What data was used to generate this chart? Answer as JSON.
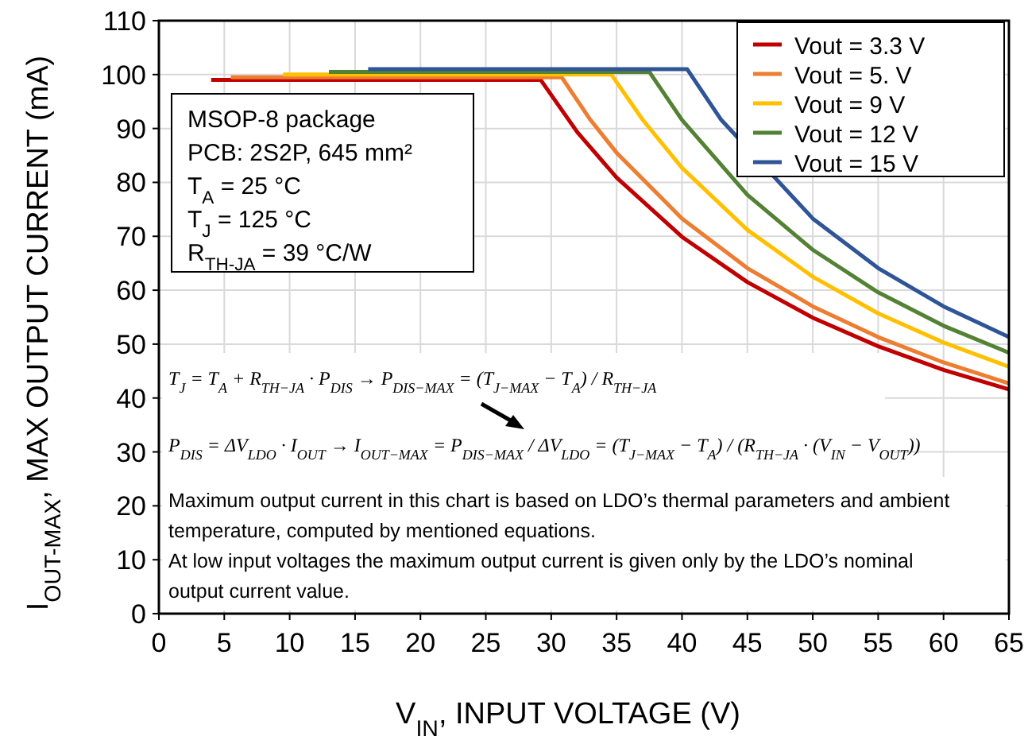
{
  "chart_data": {
    "type": "line",
    "xlabel": "V$_{IN}$, INPUT VOLTAGE (V)",
    "ylabel": "I$_{OUT-MAX}$, MAX OUTPUT CURRENT (mA)",
    "xlim": [
      0,
      65
    ],
    "xticks": [
      0,
      5,
      10,
      15,
      20,
      25,
      30,
      35,
      40,
      45,
      50,
      55,
      60,
      65
    ],
    "ylim": [
      0,
      110
    ],
    "yticks": [
      0,
      10,
      20,
      30,
      40,
      50,
      60,
      70,
      80,
      90,
      100,
      110
    ],
    "grid": true,
    "legend": "top right",
    "marker": "none",
    "line_style": "solid",
    "series": [
      {
        "name": "Vout = 3.3 V",
        "color": "#c00000",
        "x": [
          4,
          29.2,
          32,
          35,
          40,
          45,
          50,
          55,
          60,
          65
        ],
        "values": [
          99,
          99,
          89.3,
          80.9,
          69.9,
          61.5,
          54.9,
          49.6,
          45.2,
          41.6
        ]
      },
      {
        "name": "Vout = 5. V",
        "color": "#ed7d31",
        "x": [
          5.5,
          30.8,
          33,
          35,
          40,
          45,
          50,
          55,
          60,
          65
        ],
        "values": [
          99.5,
          99.5,
          91.6,
          85.5,
          73.3,
          64.1,
          57,
          51.3,
          46.6,
          42.7
        ]
      },
      {
        "name": "Vout = 9 V",
        "color": "#ffc000",
        "x": [
          9.5,
          34.6,
          37,
          40,
          45,
          50,
          55,
          60,
          65
        ],
        "values": [
          100,
          100,
          91.6,
          82.7,
          71.2,
          62.5,
          55.7,
          50.3,
          45.8
        ]
      },
      {
        "name": "Vout = 12 V",
        "color": "#548235",
        "x": [
          13,
          37.5,
          40,
          45,
          50,
          55,
          60,
          65
        ],
        "values": [
          100.5,
          100.5,
          91.6,
          77.7,
          67.5,
          59.6,
          53.4,
          48.4
        ]
      },
      {
        "name": "Vout = 15 V",
        "color": "#2f5597",
        "x": [
          16,
          40.4,
          43,
          50,
          55,
          60,
          65
        ],
        "values": [
          101,
          101,
          91.6,
          73.3,
          64.1,
          57,
          51.3
        ]
      }
    ],
    "annotations": [
      "MSOP-8 package",
      "PCB: 2S2P, 645 mm²",
      "T$_{A}$ = 25 °C",
      "T$_{J}$ = 125 °C",
      "R$_{TH-JA}$ = 39 °C/W",
      "T$_{J}$ = T$_{A}$ + R$_{TH−JA}$ · P$_{DIS}$ → P$_{DIS−MAX}$ = (T$_{J−MAX}$ − T$_{A}$) / R$_{TH−JA}$",
      "P$_{DIS}$ = ΔV$_{LDO}$ · I$_{OUT}$ → I$_{OUT−MAX}$ = P$_{DIS−MAX}$ / ΔV$_{LDO}$ = (T$_{J−MAX}$ − T$_{A}$) / (R$_{TH−JA}$ · (V$_{IN}$ − V$_{OUT}$))",
      "Maximum output current in this chart is based on LDO’s thermal parameters and ambient temperature, computed by mentioned equations.",
      "At low input voltages the maximum output current is given only by the LDO’s nominal output current value."
    ]
  }
}
